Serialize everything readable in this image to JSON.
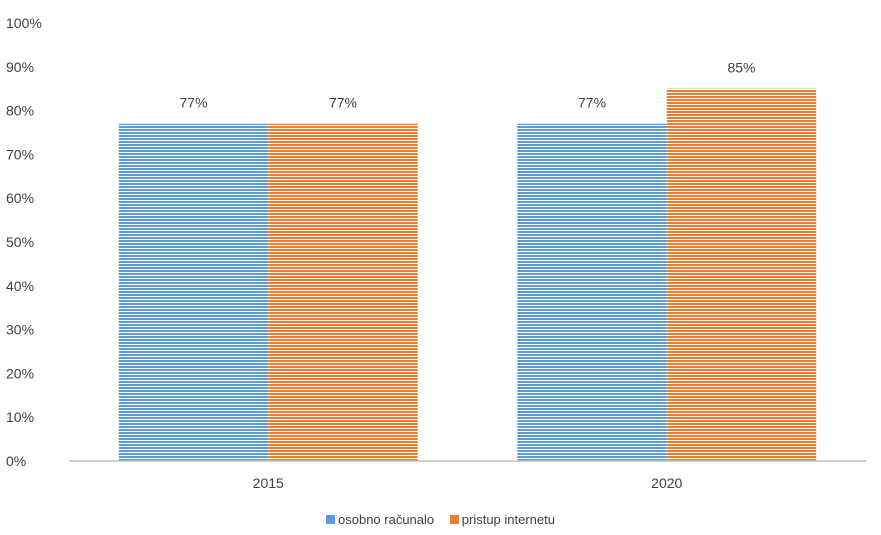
{
  "chart_data": {
    "type": "bar",
    "categories": [
      "2015",
      "2020"
    ],
    "series": [
      {
        "name": "osobno računalo",
        "values": [
          77,
          77
        ],
        "labels": [
          "77%",
          "77%"
        ],
        "color": "#5B9BD5"
      },
      {
        "name": "pristup internetu",
        "values": [
          77,
          85
        ],
        "labels": [
          "77%",
          "85%"
        ],
        "color": "#ED7D31"
      }
    ],
    "ylim": [
      0,
      100
    ],
    "yticks": [
      "0%",
      "10%",
      "20%",
      "30%",
      "40%",
      "50%",
      "60%",
      "70%",
      "80%",
      "90%",
      "100%"
    ],
    "grid": false,
    "legend_position": "bottom",
    "bar_pattern": "horizontal-stripes"
  }
}
